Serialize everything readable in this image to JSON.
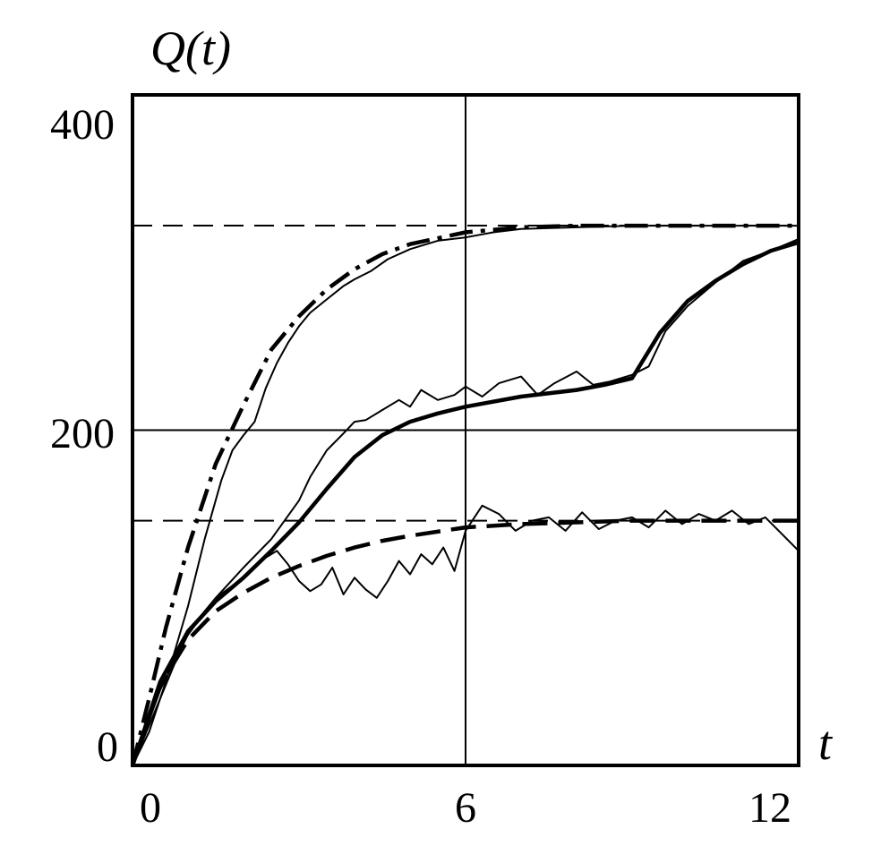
{
  "chart_data": {
    "type": "line",
    "title": "",
    "ylabel": "Q(t)",
    "xlabel": "t",
    "xlim": [
      0,
      12
    ],
    "ylim": [
      0,
      400
    ],
    "xticks": [
      "0",
      "6",
      "12"
    ],
    "yticks": [
      "0",
      "200",
      "400"
    ],
    "grid": {
      "vertical_at": [
        6
      ],
      "horizontal_at": [
        200
      ]
    },
    "reference_lines": [
      {
        "y": 322,
        "style": "dashed"
      },
      {
        "y": 146,
        "style": "dashed"
      }
    ],
    "series": [
      {
        "style": "dash-dot-thick",
        "x": [
          0,
          0.3,
          0.6,
          1,
          1.5,
          2,
          2.5,
          3,
          3.5,
          4,
          4.5,
          5,
          6,
          7,
          8,
          9,
          10,
          11,
          12
        ],
        "y": [
          0,
          40,
          82,
          130,
          180,
          215,
          248,
          268,
          284,
          296,
          305,
          311,
          318,
          321,
          322,
          322,
          322,
          322,
          322
        ]
      },
      {
        "style": "thin-noisy",
        "x": [
          0,
          0.3,
          0.6,
          1,
          1.3,
          1.6,
          1.8,
          2,
          2.2,
          2.4,
          2.6,
          2.8,
          3,
          3.2,
          3.5,
          3.8,
          4,
          4.3,
          4.6,
          5,
          5.5,
          6,
          6.5,
          7,
          8,
          9,
          10,
          11,
          12
        ],
        "y": [
          0,
          20,
          50,
          95,
          135,
          170,
          188,
          197,
          205,
          225,
          240,
          252,
          262,
          270,
          278,
          286,
          290,
          295,
          302,
          308,
          313,
          315,
          318,
          320,
          321,
          322,
          322,
          322,
          322
        ]
      },
      {
        "style": "solid-thick",
        "x": [
          0,
          0.5,
          1,
          1.5,
          2,
          2.5,
          3,
          3.5,
          4,
          4.5,
          5,
          5.5,
          6,
          7,
          8,
          8.5,
          9,
          9.5,
          10,
          10.5,
          11,
          11.5,
          12
        ],
        "y": [
          0,
          50,
          80,
          98,
          112,
          128,
          145,
          165,
          184,
          197,
          205,
          210,
          214,
          220,
          224,
          227,
          231,
          258,
          277,
          289,
          299,
          307,
          312
        ]
      },
      {
        "style": "thin-noisy",
        "x": [
          0,
          0.5,
          1,
          1.5,
          2,
          2.5,
          3,
          3.2,
          3.5,
          3.8,
          4,
          4.2,
          4.5,
          4.8,
          5,
          5.2,
          5.5,
          5.8,
          6,
          6.3,
          6.6,
          7,
          7.3,
          7.6,
          8,
          8.3,
          8.6,
          9,
          9.3,
          9.6,
          10,
          10.5,
          11,
          11.5,
          12
        ],
        "y": [
          0,
          45,
          78,
          100,
          118,
          135,
          158,
          172,
          188,
          198,
          205,
          206,
          212,
          218,
          214,
          224,
          218,
          221,
          226,
          220,
          228,
          232,
          221,
          228,
          235,
          227,
          229,
          233,
          238,
          259,
          274,
          288,
          301,
          307,
          314
        ]
      },
      {
        "style": "dashed-thick",
        "x": [
          0,
          0.5,
          1,
          1.5,
          2,
          2.5,
          3,
          3.5,
          4,
          4.5,
          5,
          6,
          7,
          8,
          9,
          10,
          11,
          12
        ],
        "y": [
          0,
          48,
          75,
          92,
          103,
          112,
          119,
          125,
          130,
          134,
          137,
          142,
          144,
          145,
          146,
          146,
          146,
          146
        ]
      },
      {
        "style": "thin-noisy",
        "x": [
          0,
          0.5,
          1,
          1.5,
          2,
          2.3,
          2.6,
          2.8,
          3,
          3.2,
          3.4,
          3.6,
          3.8,
          4,
          4.2,
          4.4,
          4.6,
          4.8,
          5,
          5.2,
          5.4,
          5.6,
          5.8,
          6,
          6.3,
          6.6,
          6.9,
          7.2,
          7.5,
          7.8,
          8.1,
          8.4,
          8.7,
          9,
          9.3,
          9.6,
          9.9,
          10.2,
          10.5,
          10.8,
          11.1,
          11.4,
          11.7,
          12
        ],
        "y": [
          0,
          40,
          80,
          100,
          112,
          122,
          128,
          120,
          110,
          104,
          108,
          118,
          102,
          112,
          105,
          100,
          110,
          122,
          114,
          126,
          120,
          130,
          116,
          140,
          155,
          150,
          140,
          146,
          148,
          140,
          151,
          141,
          146,
          148,
          142,
          152,
          144,
          150,
          146,
          152,
          144,
          148,
          138,
          128
        ]
      }
    ]
  }
}
